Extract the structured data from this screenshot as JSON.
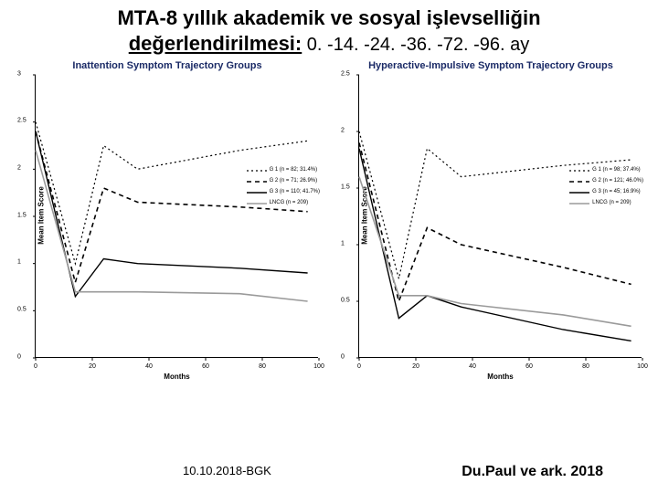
{
  "title_line1": "MTA-8 yıllık akademik ve sosyal işlevselliğin",
  "title_line2_bold": "değerlendirilmesi:",
  "title_line2_rest": " 0. -14. -24. -36. -72. -96. ay",
  "footer_left": "10.10.2018-BGK",
  "footer_right": "Du.Paul ve ark. 2018",
  "chart_left": {
    "chart_title": "Inattention Symptom Trajectory Groups",
    "xlabel": "Months",
    "ylabel": "Mean Item Score",
    "xlim": [
      0,
      100
    ],
    "ylim": [
      0,
      3
    ],
    "xticks": [
      0,
      20,
      40,
      60,
      80,
      100
    ],
    "yticks": [
      0,
      0.5,
      1,
      1.5,
      2,
      2.5,
      3
    ],
    "series": [
      {
        "label": "G 1 (n = 82; 31.4%)",
        "dash": "2 3",
        "width": 1.2,
        "color": "#000",
        "points": [
          [
            0,
            2.5
          ],
          [
            14,
            1.0
          ],
          [
            24,
            2.25
          ],
          [
            36,
            2.0
          ],
          [
            72,
            2.2
          ],
          [
            96,
            2.3
          ]
        ]
      },
      {
        "label": "G 2 (n = 71; 26.9%)",
        "dash": "5 4",
        "width": 1.6,
        "color": "#000",
        "points": [
          [
            0,
            2.4
          ],
          [
            14,
            0.8
          ],
          [
            24,
            1.8
          ],
          [
            36,
            1.65
          ],
          [
            72,
            1.6
          ],
          [
            96,
            1.55
          ]
        ]
      },
      {
        "label": "G 3 (n = 110; 41.7%)",
        "dash": "",
        "width": 1.4,
        "color": "#000",
        "points": [
          [
            0,
            2.4
          ],
          [
            14,
            0.65
          ],
          [
            24,
            1.05
          ],
          [
            36,
            1.0
          ],
          [
            72,
            0.95
          ],
          [
            96,
            0.9
          ]
        ]
      },
      {
        "label": "LNCG (n = 209)",
        "dash": "",
        "width": 1.6,
        "color": "#9a9a9a",
        "points": [
          [
            0,
            2.2
          ],
          [
            14,
            0.7
          ],
          [
            24,
            0.7
          ],
          [
            36,
            0.7
          ],
          [
            72,
            0.68
          ],
          [
            96,
            0.6
          ]
        ]
      }
    ]
  },
  "chart_right": {
    "chart_title": "Hyperactive-Impulsive Symptom Trajectory Groups",
    "xlabel": "Months",
    "ylabel": "Mean Item Score",
    "xlim": [
      0,
      100
    ],
    "ylim": [
      0,
      2.5
    ],
    "xticks": [
      0,
      20,
      40,
      60,
      80,
      100
    ],
    "yticks": [
      0,
      0.5,
      1,
      1.5,
      2,
      2.5
    ],
    "series": [
      {
        "label": "G 1 (n = 98; 37.4%)",
        "dash": "2 3",
        "width": 1.2,
        "color": "#000",
        "points": [
          [
            0,
            2.0
          ],
          [
            14,
            0.7
          ],
          [
            24,
            1.85
          ],
          [
            36,
            1.6
          ],
          [
            72,
            1.7
          ],
          [
            96,
            1.75
          ]
        ]
      },
      {
        "label": "G 2 (n = 121; 46.0%)",
        "dash": "5 4",
        "width": 1.6,
        "color": "#000",
        "points": [
          [
            0,
            1.9
          ],
          [
            14,
            0.5
          ],
          [
            24,
            1.15
          ],
          [
            36,
            1.0
          ],
          [
            72,
            0.8
          ],
          [
            96,
            0.65
          ]
        ]
      },
      {
        "label": "G 3 (n = 45; 16.9%)",
        "dash": "",
        "width": 1.4,
        "color": "#000",
        "points": [
          [
            0,
            1.85
          ],
          [
            14,
            0.35
          ],
          [
            24,
            0.55
          ],
          [
            36,
            0.45
          ],
          [
            72,
            0.25
          ],
          [
            96,
            0.15
          ]
        ]
      },
      {
        "label": "LNCG (n = 209)",
        "dash": "",
        "width": 1.6,
        "color": "#9a9a9a",
        "points": [
          [
            0,
            1.6
          ],
          [
            14,
            0.55
          ],
          [
            24,
            0.55
          ],
          [
            36,
            0.48
          ],
          [
            72,
            0.38
          ],
          [
            96,
            0.28
          ]
        ]
      }
    ]
  }
}
